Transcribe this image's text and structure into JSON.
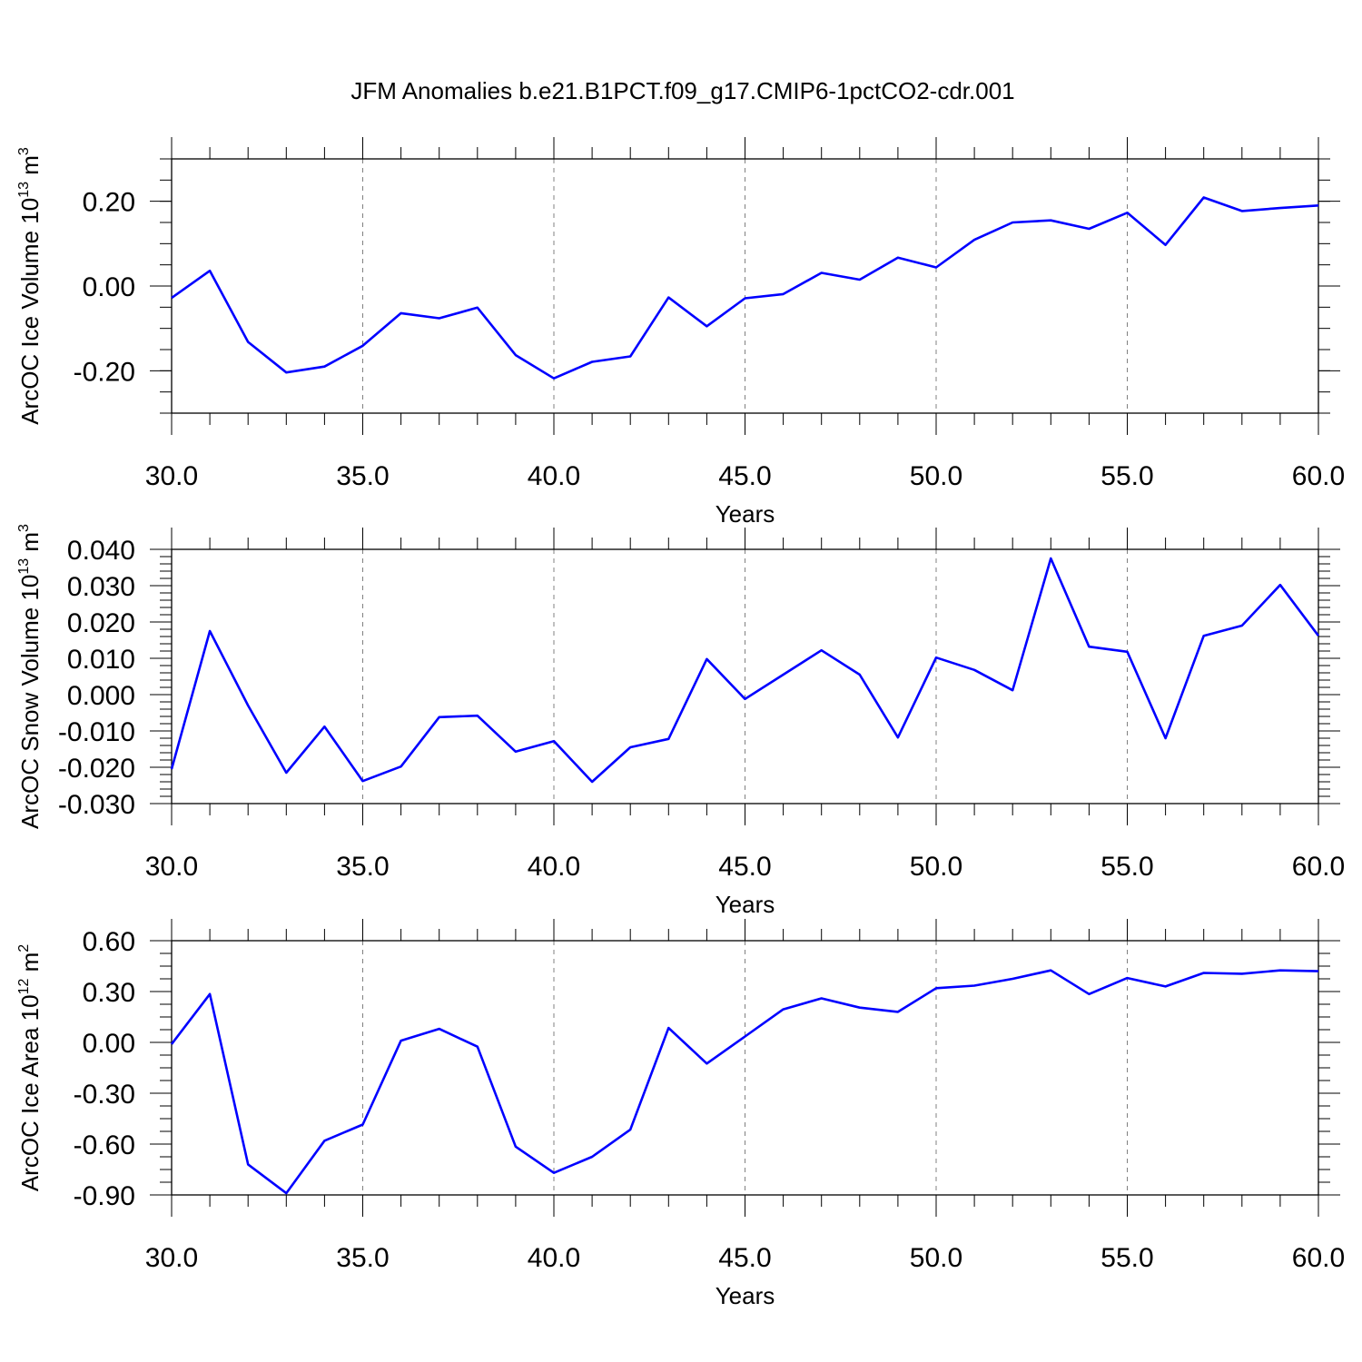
{
  "title": "JFM Anomalies b.e21.B1PCT.f09_g17.CMIP6-1pctCO2-cdr.001",
  "colors": {
    "line": "#0000ff",
    "axis": "#000000",
    "grid": "#808080",
    "background": "#ffffff"
  },
  "chart_data": [
    {
      "type": "line",
      "ylabel": "ArcOC Ice Volume 10",
      "ylabel_exp": "13",
      "ylabel_unit": " m",
      "ylabel_unit_exp": "3",
      "xlabel": "Years",
      "xlim": [
        30,
        60
      ],
      "ylim": [
        -0.3,
        0.3
      ],
      "xticks": [
        "30.0",
        "35.0",
        "40.0",
        "45.0",
        "50.0",
        "55.0",
        "60.0"
      ],
      "xtick_values": [
        30,
        35,
        40,
        45,
        50,
        55,
        60
      ],
      "yticks": [
        "0.20",
        "0.00",
        "-0.20"
      ],
      "ytick_values": [
        0.2,
        0.0,
        -0.2
      ],
      "minor_y_step": 0.05,
      "grid": "vertical dashed at major x ticks",
      "series": [
        {
          "x": [
            30,
            31,
            32,
            33,
            34,
            35,
            36,
            37,
            38,
            39,
            40,
            41,
            42,
            43,
            44,
            45,
            46,
            47,
            48,
            49,
            50,
            51,
            52,
            53,
            54,
            55,
            56,
            57,
            58,
            59,
            60
          ],
          "values": [
            -0.028,
            0.036,
            -0.132,
            -0.204,
            -0.19,
            -0.141,
            -0.064,
            -0.076,
            -0.051,
            -0.163,
            -0.218,
            -0.179,
            -0.166,
            -0.027,
            -0.095,
            -0.029,
            -0.019,
            0.031,
            0.015,
            0.067,
            0.044,
            0.109,
            0.15,
            0.155,
            0.135,
            0.173,
            0.097,
            0.209,
            0.177,
            0.184,
            0.19
          ]
        }
      ]
    },
    {
      "type": "line",
      "ylabel": "ArcOC Snow Volume 10",
      "ylabel_exp": "13",
      "ylabel_unit": " m",
      "ylabel_unit_exp": "3",
      "xlabel": "Years",
      "xlim": [
        30,
        60
      ],
      "ylim": [
        -0.03,
        0.04
      ],
      "xticks": [
        "30.0",
        "35.0",
        "40.0",
        "45.0",
        "50.0",
        "55.0",
        "60.0"
      ],
      "xtick_values": [
        30,
        35,
        40,
        45,
        50,
        55,
        60
      ],
      "yticks": [
        "0.040",
        "0.030",
        "0.020",
        "0.010",
        "0.000",
        "-0.010",
        "-0.020",
        "-0.030"
      ],
      "ytick_values": [
        0.04,
        0.03,
        0.02,
        0.01,
        0.0,
        -0.01,
        -0.02,
        -0.03
      ],
      "minor_y_step": 0.002,
      "grid": "vertical dashed at major x ticks",
      "series": [
        {
          "x": [
            30,
            31,
            32,
            33,
            34,
            35,
            36,
            37,
            38,
            39,
            40,
            41,
            42,
            43,
            44,
            45,
            46,
            47,
            48,
            49,
            50,
            51,
            52,
            53,
            54,
            55,
            56,
            57,
            58,
            59,
            60
          ],
          "values": [
            -0.0205,
            0.0175,
            -0.003,
            -0.0215,
            -0.0088,
            -0.0238,
            -0.0198,
            -0.0062,
            -0.0058,
            -0.0157,
            -0.0128,
            -0.024,
            -0.0145,
            -0.0122,
            0.0098,
            -0.0012,
            0.0055,
            0.0122,
            0.0055,
            -0.0118,
            0.0102,
            0.0068,
            0.0012,
            0.0375,
            0.0132,
            0.0118,
            -0.012,
            0.0162,
            0.019,
            0.0302,
            0.0162
          ]
        }
      ]
    },
    {
      "type": "line",
      "ylabel": "ArcOC Ice Area 10",
      "ylabel_exp": "12",
      "ylabel_unit": " m",
      "ylabel_unit_exp": "2",
      "xlabel": "Years",
      "xlim": [
        30,
        60
      ],
      "ylim": [
        -0.9,
        0.6
      ],
      "xticks": [
        "30.0",
        "35.0",
        "40.0",
        "45.0",
        "50.0",
        "55.0",
        "60.0"
      ],
      "xtick_values": [
        30,
        35,
        40,
        45,
        50,
        55,
        60
      ],
      "yticks": [
        "0.60",
        "0.30",
        "0.00",
        "-0.30",
        "-0.60",
        "-0.90"
      ],
      "ytick_values": [
        0.6,
        0.3,
        0.0,
        -0.3,
        -0.6,
        -0.9
      ],
      "minor_y_step": 0.075,
      "grid": "vertical dashed at major x ticks",
      "series": [
        {
          "x": [
            30,
            31,
            32,
            33,
            34,
            35,
            36,
            37,
            38,
            39,
            40,
            41,
            42,
            43,
            44,
            45,
            46,
            47,
            48,
            49,
            50,
            51,
            52,
            53,
            54,
            55,
            56,
            57,
            58,
            59,
            60
          ],
          "values": [
            -0.01,
            0.285,
            -0.72,
            -0.89,
            -0.58,
            -0.485,
            0.01,
            0.08,
            -0.025,
            -0.615,
            -0.77,
            -0.675,
            -0.515,
            0.085,
            -0.125,
            0.035,
            0.195,
            0.26,
            0.205,
            0.18,
            0.32,
            0.335,
            0.375,
            0.425,
            0.285,
            0.38,
            0.33,
            0.41,
            0.405,
            0.425,
            0.42
          ]
        }
      ]
    }
  ]
}
